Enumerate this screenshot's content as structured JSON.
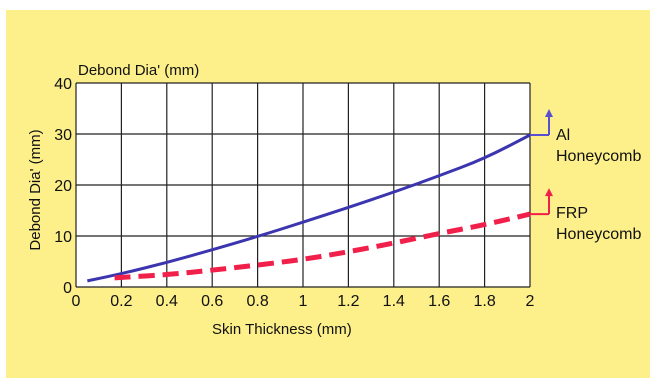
{
  "chart_data": {
    "type": "line",
    "title": "Debond Dia' (mm)",
    "xlabel": "Skin Thickness (mm)",
    "ylabel": "Debond Dia' (mm)",
    "xlim": [
      0,
      2
    ],
    "ylim": [
      0,
      40
    ],
    "xticks": [
      "0",
      "0.2",
      "0.4",
      "0.6",
      "0.8",
      "1",
      "1.2",
      "1.4",
      "1.6",
      "1.8",
      "2"
    ],
    "yticks": [
      "0",
      "10",
      "20",
      "30",
      "40"
    ],
    "grid": true,
    "series": [
      {
        "name": "Al Honeycomb",
        "label_lines": [
          "Al",
          "Honeycomb"
        ],
        "style": "solid",
        "color": "#3b35b0",
        "arrow_color": "#5a4fd0",
        "x": [
          0.05,
          0.2,
          0.4,
          0.6,
          0.8,
          1.0,
          1.2,
          1.4,
          1.6,
          1.8,
          2.0
        ],
        "y": [
          1.2,
          2.6,
          4.8,
          7.3,
          9.9,
          12.7,
          15.6,
          18.6,
          21.8,
          25.2,
          29.8
        ]
      },
      {
        "name": "FRP Honeycomb",
        "label_lines": [
          "FRP",
          "Honeycomb"
        ],
        "style": "dashed",
        "color": "#f0204a",
        "arrow_color": "#f0204a",
        "x": [
          0.17,
          0.4,
          0.6,
          0.8,
          1.0,
          1.2,
          1.4,
          1.6,
          1.8,
          2.0
        ],
        "y": [
          1.8,
          2.4,
          3.3,
          4.3,
          5.4,
          6.9,
          8.6,
          10.5,
          12.2,
          14.3
        ]
      }
    ]
  }
}
